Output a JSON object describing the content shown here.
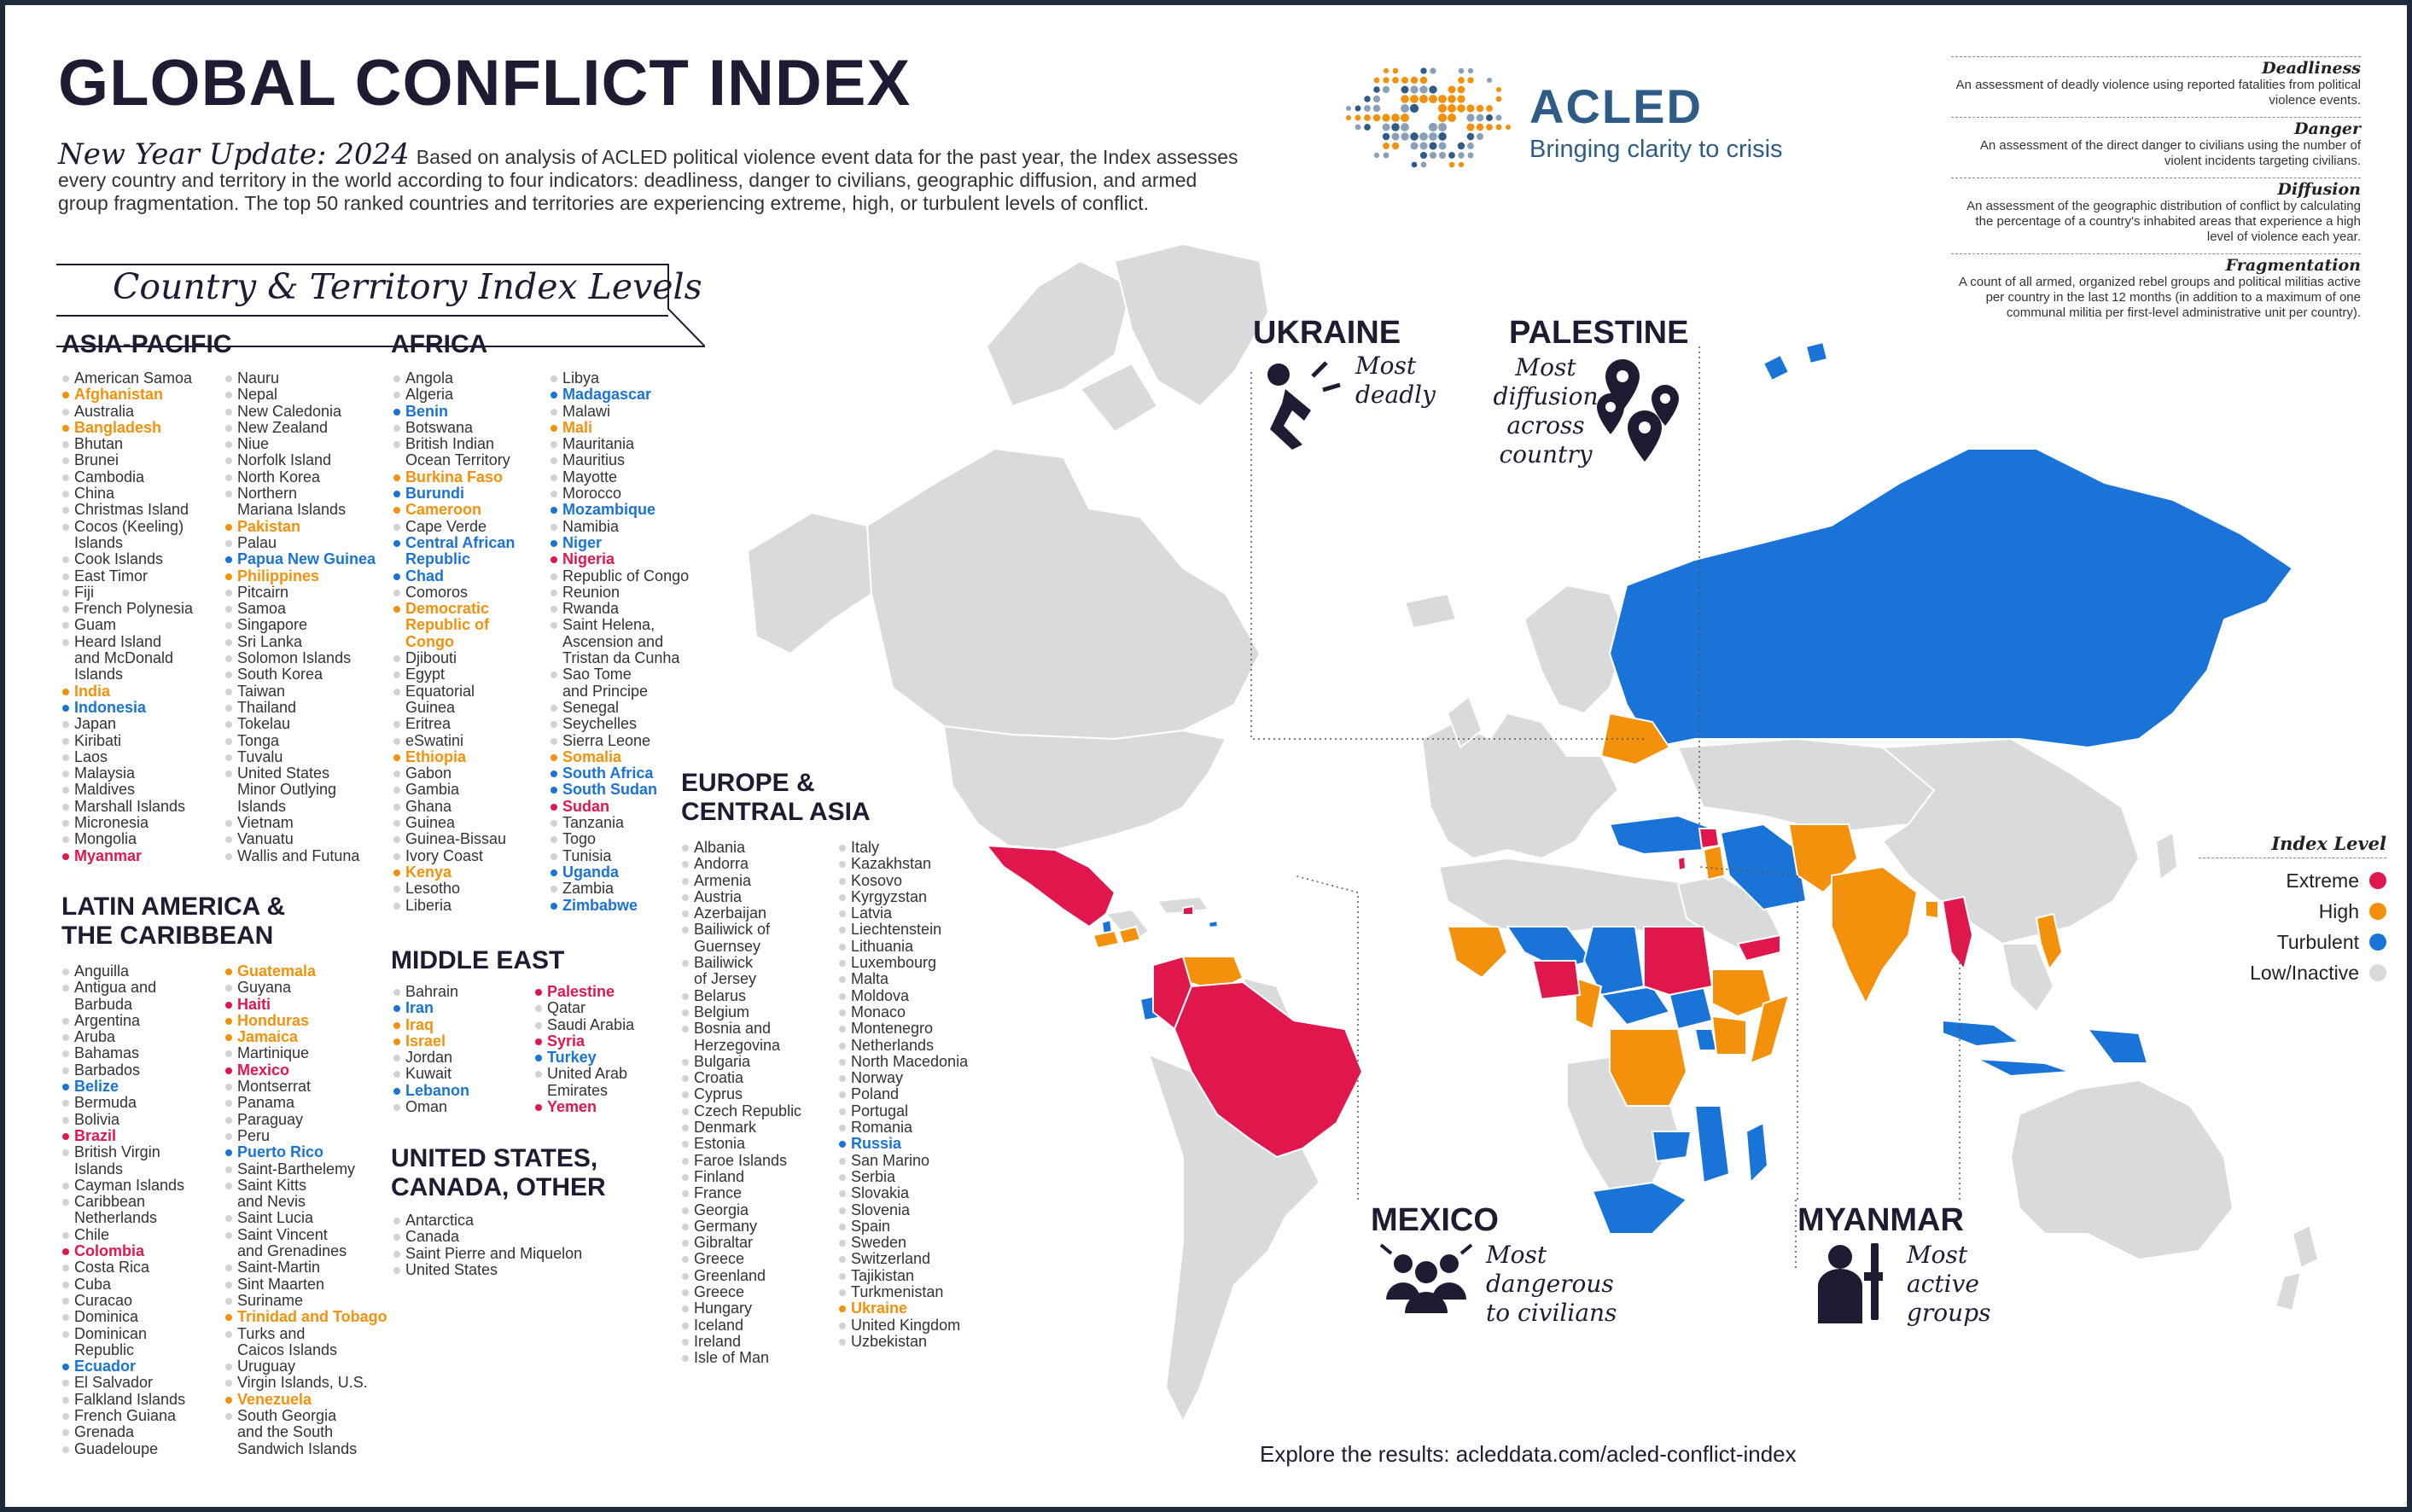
{
  "title": "GLOBAL CONFLICT INDEX",
  "intro": {
    "lead": "New Year Update: 2024",
    "text": "Based on analysis of ACLED political violence event data for the past year, the Index assesses every country and territory in the world according to four indicators: deadliness, danger to civilians, geographic diffusion, and armed group fragmentation. The top 50 ranked countries and territories are experiencing extreme, high, or turbulent levels of conflict."
  },
  "logo": {
    "name": "ACLED",
    "tagline": "Bringing clarity to crisis"
  },
  "definitions": [
    {
      "term": "Deadliness",
      "text": "An assessment of deadly violence using reported fatalities from political violence events."
    },
    {
      "term": "Danger",
      "text": "An assessment of the direct danger to civilians using the number of violent incidents targeting civilians."
    },
    {
      "term": "Diffusion",
      "text": "An assessment of the geographic distribution of conflict by calculating the percentage of a country's inhabited areas that experience a high level of violence each year."
    },
    {
      "term": "Fragmentation",
      "text": "A count of all armed, organized rebel groups and political militias active per country in the last 12 months (in addition to a maximum of one communal militia per first-level administrative unit per country)."
    }
  ],
  "list_heading": "Country & Territory Index Levels",
  "regions": {
    "asia": {
      "title": "ASIA-PACIFIC",
      "col1": [
        [
          "American Samoa",
          ""
        ],
        [
          "Afghanistan",
          "high"
        ],
        [
          "Australia",
          ""
        ],
        [
          "Bangladesh",
          "high"
        ],
        [
          "Bhutan",
          ""
        ],
        [
          "Brunei",
          ""
        ],
        [
          "Cambodia",
          ""
        ],
        [
          "China",
          ""
        ],
        [
          "Christmas Island",
          ""
        ],
        [
          "Cocos (Keeling)",
          ""
        ],
        [
          "Islands",
          "cont"
        ],
        [
          "Cook Islands",
          ""
        ],
        [
          "East Timor",
          ""
        ],
        [
          "Fiji",
          ""
        ],
        [
          "French Polynesia",
          ""
        ],
        [
          "Guam",
          ""
        ],
        [
          "Heard Island",
          ""
        ],
        [
          "and McDonald",
          "cont"
        ],
        [
          "Islands",
          "cont"
        ],
        [
          "India",
          "high"
        ],
        [
          "Indonesia",
          "turbulent"
        ],
        [
          "Japan",
          ""
        ],
        [
          "Kiribati",
          ""
        ],
        [
          "Laos",
          ""
        ],
        [
          "Malaysia",
          ""
        ],
        [
          "Maldives",
          ""
        ],
        [
          "Marshall Islands",
          ""
        ],
        [
          "Micronesia",
          ""
        ],
        [
          "Mongolia",
          ""
        ],
        [
          "Myanmar",
          "extreme"
        ]
      ],
      "col2": [
        [
          "Nauru",
          ""
        ],
        [
          "Nepal",
          ""
        ],
        [
          "New Caledonia",
          ""
        ],
        [
          "New Zealand",
          ""
        ],
        [
          "Niue",
          ""
        ],
        [
          "Norfolk Island",
          ""
        ],
        [
          "North Korea",
          ""
        ],
        [
          "Northern",
          ""
        ],
        [
          "Mariana Islands",
          "cont"
        ],
        [
          "Pakistan",
          "high"
        ],
        [
          "Palau",
          ""
        ],
        [
          "Papua New Guinea",
          "turbulent"
        ],
        [
          "Philippines",
          "high"
        ],
        [
          "Pitcairn",
          ""
        ],
        [
          "Samoa",
          ""
        ],
        [
          "Singapore",
          ""
        ],
        [
          "Sri Lanka",
          ""
        ],
        [
          "Solomon Islands",
          ""
        ],
        [
          "South Korea",
          ""
        ],
        [
          "Taiwan",
          ""
        ],
        [
          "Thailand",
          ""
        ],
        [
          "Tokelau",
          ""
        ],
        [
          "Tonga",
          ""
        ],
        [
          "Tuvalu",
          ""
        ],
        [
          "United States",
          ""
        ],
        [
          "Minor Outlying",
          "cont"
        ],
        [
          "Islands",
          "cont"
        ],
        [
          "Vietnam",
          ""
        ],
        [
          "Vanuatu",
          ""
        ],
        [
          "Wallis and Futuna",
          ""
        ]
      ]
    },
    "latam": {
      "title": "LATIN AMERICA &\nTHE CARIBBEAN",
      "col1": [
        [
          "Anguilla",
          ""
        ],
        [
          "Antigua and",
          ""
        ],
        [
          "Barbuda",
          "cont"
        ],
        [
          "Argentina",
          ""
        ],
        [
          "Aruba",
          ""
        ],
        [
          "Bahamas",
          ""
        ],
        [
          "Barbados",
          ""
        ],
        [
          "Belize",
          "turbulent"
        ],
        [
          "Bermuda",
          ""
        ],
        [
          "Bolivia",
          ""
        ],
        [
          "Brazil",
          "extreme"
        ],
        [
          "British Virgin",
          ""
        ],
        [
          "Islands",
          "cont"
        ],
        [
          "Cayman Islands",
          ""
        ],
        [
          "Caribbean",
          ""
        ],
        [
          "Netherlands",
          "cont"
        ],
        [
          "Chile",
          ""
        ],
        [
          "Colombia",
          "extreme"
        ],
        [
          "Costa Rica",
          ""
        ],
        [
          "Cuba",
          ""
        ],
        [
          "Curacao",
          ""
        ],
        [
          "Dominica",
          ""
        ],
        [
          "Dominican",
          ""
        ],
        [
          "Republic",
          "cont"
        ],
        [
          "Ecuador",
          "turbulent"
        ],
        [
          "El Salvador",
          ""
        ],
        [
          "Falkland Islands",
          ""
        ],
        [
          "French Guiana",
          ""
        ],
        [
          "Grenada",
          ""
        ],
        [
          "Guadeloupe",
          ""
        ]
      ],
      "col2": [
        [
          "Guatemala",
          "high"
        ],
        [
          "Guyana",
          ""
        ],
        [
          "Haiti",
          "extreme"
        ],
        [
          "Honduras",
          "high"
        ],
        [
          "Jamaica",
          "high"
        ],
        [
          "Martinique",
          ""
        ],
        [
          "Mexico",
          "extreme"
        ],
        [
          "Montserrat",
          ""
        ],
        [
          "Panama",
          ""
        ],
        [
          "Paraguay",
          ""
        ],
        [
          "Peru",
          ""
        ],
        [
          "Puerto Rico",
          "turbulent"
        ],
        [
          "Saint-Barthelemy",
          ""
        ],
        [
          "Saint Kitts",
          ""
        ],
        [
          "and Nevis",
          "cont"
        ],
        [
          "Saint Lucia",
          ""
        ],
        [
          "Saint Vincent",
          ""
        ],
        [
          "and Grenadines",
          "cont"
        ],
        [
          "Saint-Martin",
          ""
        ],
        [
          "Sint Maarten",
          ""
        ],
        [
          "Suriname",
          ""
        ],
        [
          "Trinidad and Tobago",
          "high"
        ],
        [
          "Turks and",
          ""
        ],
        [
          "Caicos Islands",
          "cont"
        ],
        [
          "Uruguay",
          ""
        ],
        [
          "Virgin Islands, U.S.",
          ""
        ],
        [
          "Venezuela",
          "high"
        ],
        [
          "South Georgia",
          ""
        ],
        [
          "and the South",
          "cont"
        ],
        [
          "Sandwich Islands",
          "cont"
        ]
      ]
    },
    "africa": {
      "title": "AFRICA",
      "col1": [
        [
          "Angola",
          ""
        ],
        [
          "Algeria",
          ""
        ],
        [
          "Benin",
          "turbulent"
        ],
        [
          "Botswana",
          ""
        ],
        [
          "British Indian",
          ""
        ],
        [
          "Ocean Territory",
          "cont"
        ],
        [
          "Burkina Faso",
          "high"
        ],
        [
          "Burundi",
          "turbulent"
        ],
        [
          "Cameroon",
          "high"
        ],
        [
          "Cape Verde",
          ""
        ],
        [
          "Central African",
          "turbulent"
        ],
        [
          "Republic",
          "turbulent cont"
        ],
        [
          "Chad",
          "turbulent"
        ],
        [
          "Comoros",
          ""
        ],
        [
          "Democratic",
          "high"
        ],
        [
          "Republic of",
          "high cont"
        ],
        [
          "Congo",
          "high cont"
        ],
        [
          "Djibouti",
          ""
        ],
        [
          "Egypt",
          ""
        ],
        [
          "Equatorial",
          ""
        ],
        [
          "Guinea",
          "cont"
        ],
        [
          "Eritrea",
          ""
        ],
        [
          "eSwatini",
          ""
        ],
        [
          "Ethiopia",
          "high"
        ],
        [
          "Gabon",
          ""
        ],
        [
          "Gambia",
          ""
        ],
        [
          "Ghana",
          ""
        ],
        [
          "Guinea",
          ""
        ],
        [
          "Guinea-Bissau",
          ""
        ],
        [
          "Ivory Coast",
          ""
        ],
        [
          "Kenya",
          "high"
        ],
        [
          "Lesotho",
          ""
        ],
        [
          "Liberia",
          ""
        ]
      ],
      "col2": [
        [
          "Libya",
          ""
        ],
        [
          "Madagascar",
          "turbulent"
        ],
        [
          "Malawi",
          ""
        ],
        [
          "Mali",
          "high"
        ],
        [
          "Mauritania",
          ""
        ],
        [
          "Mauritius",
          ""
        ],
        [
          "Mayotte",
          ""
        ],
        [
          "Morocco",
          ""
        ],
        [
          "Mozambique",
          "turbulent"
        ],
        [
          "Namibia",
          ""
        ],
        [
          "Niger",
          "turbulent"
        ],
        [
          "Nigeria",
          "extreme"
        ],
        [
          "Republic of Congo",
          ""
        ],
        [
          "Reunion",
          ""
        ],
        [
          "Rwanda",
          ""
        ],
        [
          "Saint Helena,",
          ""
        ],
        [
          "Ascension and",
          "cont"
        ],
        [
          "Tristan da Cunha",
          "cont"
        ],
        [
          "Sao Tome",
          ""
        ],
        [
          "and Principe",
          "cont"
        ],
        [
          "Senegal",
          ""
        ],
        [
          "Seychelles",
          ""
        ],
        [
          "Sierra Leone",
          ""
        ],
        [
          "Somalia",
          "high"
        ],
        [
          "South Africa",
          "turbulent"
        ],
        [
          "South Sudan",
          "turbulent"
        ],
        [
          "Sudan",
          "extreme"
        ],
        [
          "Tanzania",
          ""
        ],
        [
          "Togo",
          ""
        ],
        [
          "Tunisia",
          ""
        ],
        [
          "Uganda",
          "turbulent"
        ],
        [
          "Zambia",
          ""
        ],
        [
          "Zimbabwe",
          "turbulent"
        ]
      ]
    },
    "mideast": {
      "title": "MIDDLE EAST",
      "col1": [
        [
          "Bahrain",
          ""
        ],
        [
          "Iran",
          "turbulent"
        ],
        [
          "Iraq",
          "high"
        ],
        [
          "Israel",
          "high"
        ],
        [
          "Jordan",
          ""
        ],
        [
          "Kuwait",
          ""
        ],
        [
          "Lebanon",
          "turbulent"
        ],
        [
          "Oman",
          ""
        ]
      ],
      "col2": [
        [
          "Palestine",
          "extreme"
        ],
        [
          "Qatar",
          ""
        ],
        [
          "Saudi Arabia",
          ""
        ],
        [
          "Syria",
          "extreme"
        ],
        [
          "Turkey",
          "turbulent"
        ],
        [
          "United Arab",
          ""
        ],
        [
          "Emirates",
          "cont"
        ],
        [
          "Yemen",
          "extreme"
        ]
      ]
    },
    "usa": {
      "title": "UNITED STATES,\nCANADA, OTHER",
      "col1": [
        [
          "Antarctica",
          ""
        ],
        [
          "Canada",
          ""
        ],
        [
          "Saint Pierre and Miquelon",
          ""
        ],
        [
          "United States",
          ""
        ]
      ]
    },
    "europe": {
      "title": "EUROPE &\nCENTRAL ASIA",
      "col1": [
        [
          "Albania",
          ""
        ],
        [
          "Andorra",
          ""
        ],
        [
          "Armenia",
          ""
        ],
        [
          "Austria",
          ""
        ],
        [
          "Azerbaijan",
          ""
        ],
        [
          "Bailiwick of",
          ""
        ],
        [
          "Guernsey",
          "cont"
        ],
        [
          "Bailiwick",
          ""
        ],
        [
          "of Jersey",
          "cont"
        ],
        [
          "Belarus",
          ""
        ],
        [
          "Belgium",
          ""
        ],
        [
          "Bosnia and",
          ""
        ],
        [
          "Herzegovina",
          "cont"
        ],
        [
          "Bulgaria",
          ""
        ],
        [
          "Croatia",
          ""
        ],
        [
          "Cyprus",
          ""
        ],
        [
          "Czech Republic",
          ""
        ],
        [
          "Denmark",
          ""
        ],
        [
          "Estonia",
          ""
        ],
        [
          "Faroe Islands",
          ""
        ],
        [
          "Finland",
          ""
        ],
        [
          "France",
          ""
        ],
        [
          "Georgia",
          ""
        ],
        [
          "Germany",
          ""
        ],
        [
          "Gibraltar",
          ""
        ],
        [
          "Greece",
          ""
        ],
        [
          "Greenland",
          ""
        ],
        [
          "Greece",
          ""
        ],
        [
          "Hungary",
          ""
        ],
        [
          "Iceland",
          ""
        ],
        [
          "Ireland",
          ""
        ],
        [
          "Isle of Man",
          ""
        ]
      ],
      "col2": [
        [
          "Italy",
          ""
        ],
        [
          "Kazakhstan",
          ""
        ],
        [
          "Kosovo",
          ""
        ],
        [
          "Kyrgyzstan",
          ""
        ],
        [
          "Latvia",
          ""
        ],
        [
          "Liechtenstein",
          ""
        ],
        [
          "Lithuania",
          ""
        ],
        [
          "Luxembourg",
          ""
        ],
        [
          "Malta",
          ""
        ],
        [
          "Moldova",
          ""
        ],
        [
          "Monaco",
          ""
        ],
        [
          "Montenegro",
          ""
        ],
        [
          "Netherlands",
          ""
        ],
        [
          "North Macedonia",
          ""
        ],
        [
          "Norway",
          ""
        ],
        [
          "Poland",
          ""
        ],
        [
          "Portugal",
          ""
        ],
        [
          "Romania",
          ""
        ],
        [
          "Russia",
          "turbulent"
        ],
        [
          "San Marino",
          ""
        ],
        [
          "Serbia",
          ""
        ],
        [
          "Slovakia",
          ""
        ],
        [
          "Slovenia",
          ""
        ],
        [
          "Spain",
          ""
        ],
        [
          "Sweden",
          ""
        ],
        [
          "Switzerland",
          ""
        ],
        [
          "Tajikistan",
          ""
        ],
        [
          "Turkmenistan",
          ""
        ],
        [
          "Ukraine",
          "high"
        ],
        [
          "United Kingdom",
          ""
        ],
        [
          "Uzbekistan",
          ""
        ]
      ]
    }
  },
  "callouts": {
    "ukraine": {
      "title": "UKRAINE",
      "sub": "Most\ndeadly",
      "icon": "falling-person-icon"
    },
    "palestine": {
      "title": "PALESTINE",
      "sub": "Most\ndiffusion\nacross\ncountry",
      "icon": "map-pins-icon"
    },
    "mexico": {
      "title": "MEXICO",
      "sub": "Most\ndangerous\nto civilians",
      "icon": "civilians-group-icon"
    },
    "myanmar": {
      "title": "MYANMAR",
      "sub": "Most\nactive\ngroups",
      "icon": "armed-soldier-icon"
    }
  },
  "legend": {
    "title": "Index Level",
    "levels": [
      {
        "label": "Extreme",
        "color": "#e0174c"
      },
      {
        "label": "High",
        "color": "#f4910c"
      },
      {
        "label": "Turbulent",
        "color": "#1a73d6"
      },
      {
        "label": "Low/Inactive",
        "color": "#d9dadb"
      }
    ]
  },
  "footer": "Explore the results: acleddata.com/acled-conflict-index"
}
